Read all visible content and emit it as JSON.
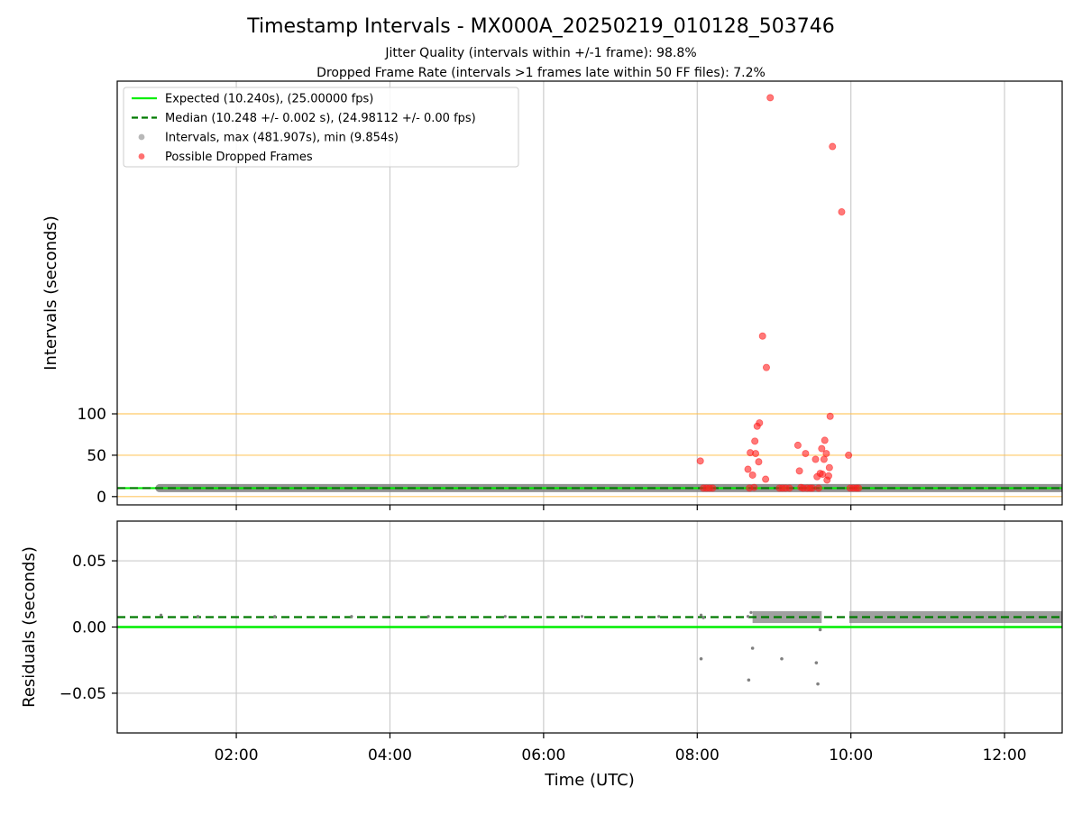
{
  "chart_data": {
    "type": "scatter",
    "title": "Timestamp Intervals - MX000A_20250219_010128_503746",
    "subtitle_lines": [
      "Jitter Quality (intervals within +/-1 frame): 98.8%",
      "Dropped Frame Rate (intervals >1 frames late within 50 FF files): 7.2%"
    ],
    "x_axis": {
      "label": "Time (UTC)",
      "unit": "hours UTC",
      "range": [
        0.45,
        12.75
      ],
      "ticks": [
        {
          "value": 2,
          "label": "02:00"
        },
        {
          "value": 4,
          "label": "04:00"
        },
        {
          "value": 6,
          "label": "06:00"
        },
        {
          "value": 8,
          "label": "08:00"
        },
        {
          "value": 10,
          "label": "10:00"
        },
        {
          "value": 12,
          "label": "12:00"
        }
      ],
      "grid": true
    },
    "colors": {
      "expected": "#00ee00",
      "median": "#007a00",
      "intervals": "#808080",
      "dropped": "#ff2020",
      "threshold_lines": "#ffc04d",
      "grid": "#cccccc"
    },
    "panels": [
      {
        "name": "intervals",
        "ylabel": "Intervals (seconds)",
        "ylim": [
          -10,
          502
        ],
        "yticks": [
          0,
          50,
          100
        ],
        "grid_y": false,
        "threshold_lines": [
          0,
          50,
          100
        ],
        "expected_value": 10.24,
        "median_value": 10.248,
        "legend": {
          "position": "upper left",
          "entries": [
            {
              "label": "Expected (10.240s), (25.00000 fps)",
              "style": "solid-line",
              "color": "#00ee00"
            },
            {
              "label": "Median (10.248 +/- 0.002 s), (24.98112 +/- 0.00 fps)",
              "style": "dashed-line",
              "color": "#007a00"
            },
            {
              "label": "Intervals, max (481.907s), min (9.854s)",
              "style": "marker",
              "color": "#a0a0a0"
            },
            {
              "label": "Possible Dropped Frames",
              "style": "marker",
              "color": "#ff4040"
            }
          ]
        },
        "interval_bands": [
          [
            1.0,
            12.75
          ]
        ],
        "dropped_points": [
          [
            8.04,
            43
          ],
          [
            8.08,
            10.2
          ],
          [
            8.12,
            10.2
          ],
          [
            8.16,
            10.2
          ],
          [
            8.2,
            10.2
          ],
          [
            8.66,
            33
          ],
          [
            8.68,
            10.3
          ],
          [
            8.69,
            53
          ],
          [
            8.72,
            26
          ],
          [
            8.74,
            11
          ],
          [
            8.75,
            67
          ],
          [
            8.76,
            52
          ],
          [
            8.78,
            85
          ],
          [
            8.8,
            42
          ],
          [
            8.81,
            89
          ],
          [
            8.85,
            194
          ],
          [
            8.89,
            21
          ],
          [
            8.9,
            156
          ],
          [
            8.95,
            482
          ],
          [
            9.07,
            10.2
          ],
          [
            9.11,
            10.2
          ],
          [
            9.15,
            10.2
          ],
          [
            9.2,
            10.2
          ],
          [
            9.31,
            62
          ],
          [
            9.33,
            31
          ],
          [
            9.35,
            11
          ],
          [
            9.38,
            10.2
          ],
          [
            9.41,
            52
          ],
          [
            9.43,
            10.2
          ],
          [
            9.47,
            10.2
          ],
          [
            9.5,
            10.2
          ],
          [
            9.54,
            45
          ],
          [
            9.56,
            24
          ],
          [
            9.58,
            10.2
          ],
          [
            9.6,
            28
          ],
          [
            9.62,
            58
          ],
          [
            9.63,
            27
          ],
          [
            9.65,
            45
          ],
          [
            9.66,
            68
          ],
          [
            9.68,
            52
          ],
          [
            9.69,
            20
          ],
          [
            9.71,
            25
          ],
          [
            9.72,
            35
          ],
          [
            9.73,
            97
          ],
          [
            9.76,
            423
          ],
          [
            9.88,
            344
          ],
          [
            9.97,
            50
          ],
          [
            9.99,
            10.2
          ],
          [
            10.03,
            10.2
          ],
          [
            10.07,
            10.2
          ],
          [
            10.1,
            10.2
          ]
        ]
      },
      {
        "name": "residuals",
        "ylabel": "Residuals (seconds)",
        "ylim": [
          -0.08,
          0.08
        ],
        "yticks": [
          -0.05,
          0,
          0.05
        ],
        "ytick_labels": [
          "−0.05",
          "0.00",
          "0.05"
        ],
        "grid_y": true,
        "expected_value": 0.0,
        "median_value": 0.0075,
        "residual_band_segments": [
          [
            8.72,
            9.62
          ],
          [
            9.98,
            12.75
          ]
        ],
        "residual_sparse_points": [
          [
            1.02,
            0.009
          ],
          [
            1.5,
            0.008
          ],
          [
            2.5,
            0.008
          ],
          [
            3.5,
            0.008
          ],
          [
            4.5,
            0.008
          ],
          [
            5.5,
            0.008
          ],
          [
            6.5,
            0.008
          ],
          [
            7.5,
            0.008
          ],
          [
            8.05,
            0.009
          ],
          [
            8.08,
            0.007
          ],
          [
            8.66,
            0.008
          ],
          [
            8.7,
            0.011
          ]
        ],
        "residual_outliers": [
          [
            8.05,
            -0.024
          ],
          [
            8.67,
            -0.04
          ],
          [
            8.72,
            -0.016
          ],
          [
            9.1,
            -0.024
          ],
          [
            9.55,
            -0.027
          ],
          [
            9.57,
            -0.043
          ],
          [
            9.6,
            -0.002
          ]
        ]
      }
    ]
  }
}
